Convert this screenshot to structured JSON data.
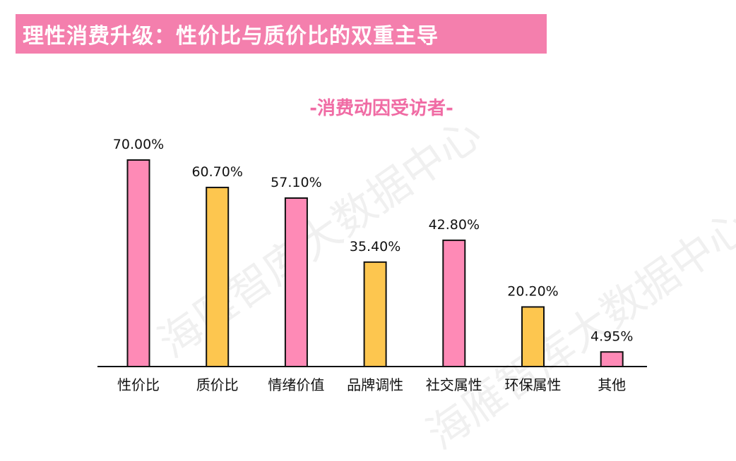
{
  "header": {
    "title": "理性消费升级：性价比与质价比的双重主导"
  },
  "watermark": {
    "text": "海雁智库大数据中心"
  },
  "colors": {
    "banner": "#f47fad",
    "pink": "#fe8ab6",
    "yellow": "#fdc64f",
    "subtitle": "#f06ba4",
    "axis": "#111111"
  },
  "chart_data": {
    "type": "bar",
    "title": "-消费动因受访者-",
    "categories": [
      "性价比",
      "质价比",
      "情绪价值",
      "品牌调性",
      "社交属性",
      "环保属性",
      "其他"
    ],
    "values": [
      70.0,
      60.7,
      57.1,
      35.4,
      42.8,
      20.2,
      4.95
    ],
    "value_labels": [
      "70.00%",
      "60.70%",
      "57.10%",
      "35.40%",
      "42.80%",
      "20.20%",
      "4.95%"
    ],
    "bar_colors": [
      "#fe8ab6",
      "#fdc64f",
      "#fe8ab6",
      "#fdc64f",
      "#fe8ab6",
      "#fdc64f",
      "#fe8ab6"
    ],
    "ylim": [
      0,
      70
    ],
    "xlabel": "",
    "ylabel": "",
    "grid": false,
    "legend": "none"
  }
}
